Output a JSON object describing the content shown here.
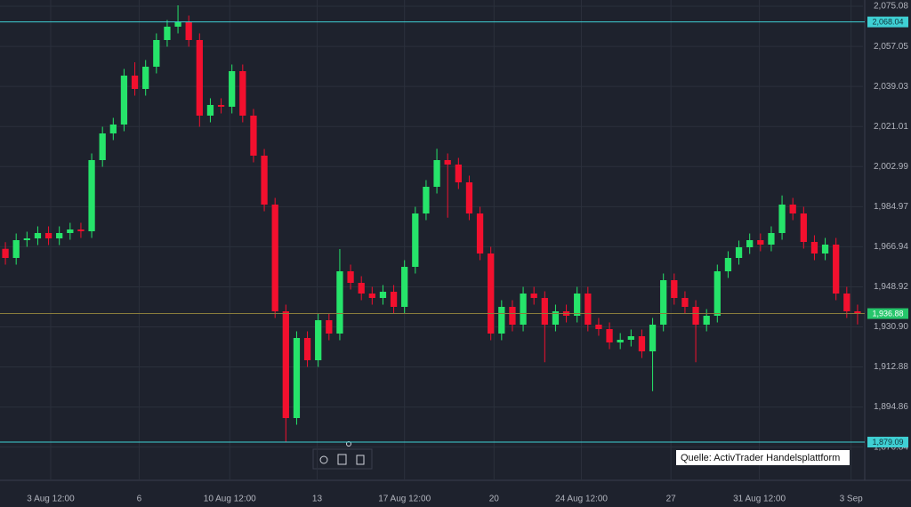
{
  "chart_data": {
    "type": "candlestick",
    "source": "Quelle: ActivTrader Handelsplattform",
    "up_color": "#26e46a",
    "down_color": "#f2102e",
    "grid": true,
    "ylim": [
      1861.9,
      2077.9
    ],
    "yticks": [
      {
        "value": 2075.08,
        "label": "2,075.08"
      },
      {
        "value": 2057.05,
        "label": "2,057.05"
      },
      {
        "value": 2039.03,
        "label": "2,039.03"
      },
      {
        "value": 2021.01,
        "label": "2,021.01"
      },
      {
        "value": 2002.99,
        "label": "2,002.99"
      },
      {
        "value": 1984.97,
        "label": "1,984.97"
      },
      {
        "value": 1966.94,
        "label": "1,966.94"
      },
      {
        "value": 1948.92,
        "label": "1,948.92"
      },
      {
        "value": 1930.9,
        "label": "1,930.90"
      },
      {
        "value": 1912.88,
        "label": "1,912.88"
      },
      {
        "value": 1894.86,
        "label": "1,894.86"
      },
      {
        "value": 1876.84,
        "label": "1,876.84"
      }
    ],
    "xlim": [
      0,
      80
    ],
    "xticks": [
      {
        "value": 4.7,
        "label": "3 Aug 12:00"
      },
      {
        "value": 12.9,
        "label": "6"
      },
      {
        "value": 21.3,
        "label": "10 Aug 12:00"
      },
      {
        "value": 29.4,
        "label": "13"
      },
      {
        "value": 37.5,
        "label": "17 Aug 12:00"
      },
      {
        "value": 45.8,
        "label": "20"
      },
      {
        "value": 53.9,
        "label": "24 Aug 12:00"
      },
      {
        "value": 62.2,
        "label": "27"
      },
      {
        "value": 70.4,
        "label": "31 Aug 12:00"
      },
      {
        "value": 78.9,
        "label": "3 Sep"
      }
    ],
    "levels": [
      {
        "value": 2068.04,
        "label": "2,068.04",
        "color": "#3fd0d4"
      },
      {
        "value": 1879.09,
        "label": "1,879.09",
        "color": "#3fd0d4"
      }
    ],
    "last_price": {
      "value": 1936.88,
      "label": "1,936.88",
      "color": "#26c66b",
      "line_color": "#8a7c3c"
    },
    "open": [
      1966.0,
      1961.9,
      1969.9,
      1970.7,
      1973.1,
      1970.7,
      1973.1,
      1974.7,
      1973.9,
      2005.9,
      2017.9,
      2021.9,
      2043.9,
      2037.9,
      2047.9,
      2059.9,
      2065.9,
      2067.9,
      2059.9,
      2025.9,
      2030.7,
      2029.9,
      2045.9,
      2025.9,
      2007.9,
      1985.9,
      1937.9,
      1889.9,
      1925.9,
      1915.9,
      1933.9,
      1927.9,
      1955.9,
      1950.7,
      1945.9,
      1943.9,
      1946.7,
      1939.9,
      1957.9,
      1981.9,
      1993.9,
      2005.9,
      2003.9,
      1995.9,
      1981.9,
      1963.9,
      1927.9,
      1939.9,
      1931.9,
      1945.9,
      1943.9,
      1931.9,
      1937.9,
      1935.9,
      1945.9,
      1931.9,
      1929.9,
      1923.9,
      1925.1,
      1926.7,
      1919.9,
      1931.9,
      1951.9,
      1943.9,
      1939.9,
      1931.9,
      1935.9,
      1955.9,
      1961.9,
      1966.7,
      1969.9,
      1967.9,
      1973.1,
      1985.9,
      1981.9,
      1969.1,
      1963.9,
      1967.9,
      1945.9,
      1937.9
    ],
    "high": [
      1969.0,
      1972.9,
      1973.7,
      1976.1,
      1976.1,
      1976.1,
      1977.7,
      1977.7,
      2008.9,
      2020.9,
      2024.9,
      2046.9,
      2049.9,
      2050.9,
      2062.9,
      2068.9,
      2075.5,
      2070.9,
      2062.9,
      2033.7,
      2033.7,
      2048.9,
      2048.9,
      2028.9,
      2010.9,
      1988.9,
      1940.9,
      1928.9,
      1928.9,
      1936.9,
      1936.9,
      1965.9,
      1958.9,
      1953.7,
      1948.9,
      1949.7,
      1949.7,
      1960.9,
      1984.9,
      1996.9,
      2011.0,
      2008.9,
      2006.9,
      1998.9,
      1984.9,
      1966.9,
      1942.9,
      1942.9,
      1948.9,
      1948.9,
      1946.9,
      1940.9,
      1940.9,
      1948.9,
      1948.9,
      1934.9,
      1932.9,
      1928.1,
      1929.7,
      1929.7,
      1934.9,
      1954.9,
      1954.9,
      1946.9,
      1942.9,
      1938.9,
      1958.9,
      1964.9,
      1969.7,
      1972.9,
      1972.9,
      1976.1,
      1990.0,
      1988.9,
      1984.9,
      1972.1,
      1970.9,
      1970.9,
      1948.9,
      1940.9
    ],
    "low": [
      1958.9,
      1958.9,
      1966.9,
      1967.7,
      1967.7,
      1967.7,
      1970.1,
      1970.9,
      1970.9,
      2002.9,
      2014.9,
      2018.9,
      2034.9,
      2034.9,
      2044.9,
      2056.9,
      2062.9,
      2056.9,
      2020.9,
      2022.9,
      2026.9,
      2026.9,
      2022.9,
      2004.9,
      1982.9,
      1934.9,
      1879.1,
      1886.9,
      1912.9,
      1912.9,
      1924.9,
      1924.9,
      1947.7,
      1942.9,
      1940.9,
      1940.9,
      1936.9,
      1936.9,
      1954.9,
      1978.9,
      1990.9,
      1980.0,
      1992.9,
      1978.9,
      1960.9,
      1924.9,
      1924.9,
      1928.9,
      1928.9,
      1940.9,
      1915.0,
      1928.9,
      1932.9,
      1932.9,
      1928.9,
      1926.9,
      1920.9,
      1920.9,
      1922.1,
      1916.9,
      1902.0,
      1928.9,
      1940.9,
      1936.9,
      1915.0,
      1928.9,
      1932.9,
      1952.9,
      1958.9,
      1963.7,
      1964.9,
      1964.9,
      1970.1,
      1978.9,
      1966.1,
      1960.9,
      1960.9,
      1942.9,
      1934.9,
      1932.0
    ],
    "close": [
      1961.9,
      1969.9,
      1970.7,
      1973.1,
      1970.7,
      1973.1,
      1974.7,
      1973.9,
      2005.9,
      2017.9,
      2021.9,
      2043.9,
      2037.9,
      2047.9,
      2059.9,
      2065.9,
      2067.9,
      2059.9,
      2025.9,
      2030.7,
      2029.9,
      2045.9,
      2025.9,
      2007.9,
      1985.9,
      1937.9,
      1889.9,
      1925.9,
      1915.9,
      1933.9,
      1927.9,
      1955.9,
      1950.7,
      1945.9,
      1943.9,
      1946.7,
      1939.9,
      1957.9,
      1981.9,
      1993.9,
      2005.9,
      2003.9,
      1995.9,
      1981.9,
      1963.9,
      1927.9,
      1939.9,
      1931.9,
      1945.9,
      1943.9,
      1931.9,
      1937.9,
      1935.9,
      1945.9,
      1931.9,
      1929.9,
      1923.9,
      1925.1,
      1926.7,
      1919.9,
      1931.9,
      1951.9,
      1943.9,
      1939.9,
      1931.9,
      1935.9,
      1955.9,
      1961.9,
      1966.7,
      1969.9,
      1967.9,
      1973.1,
      1985.9,
      1981.9,
      1969.1,
      1963.9,
      1967.9,
      1945.9,
      1937.9,
      1936.9
    ]
  }
}
